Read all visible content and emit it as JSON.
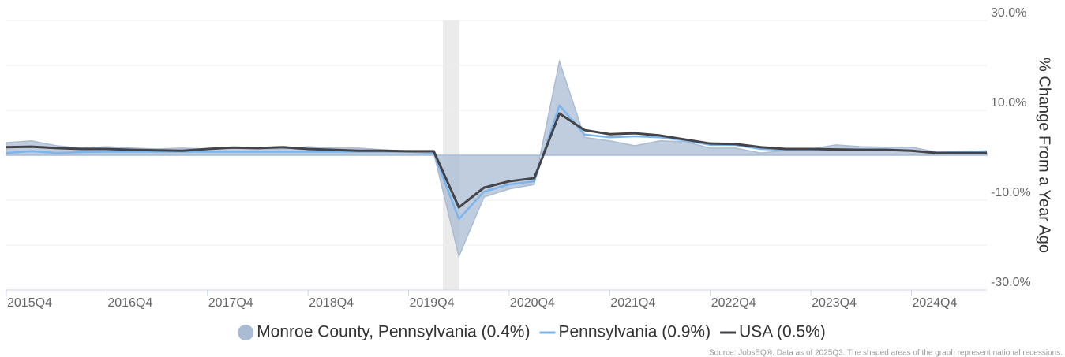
{
  "chart_data": {
    "type": "line",
    "y_axis_label": "% Change From a Year Ago",
    "source": "Source: JobsEQ®. Data as of 2025Q3. The shaded areas of the graph represent national recessions.",
    "categories": [
      "2015Q4",
      null,
      null,
      null,
      "2016Q4",
      null,
      null,
      null,
      "2017Q4",
      null,
      null,
      null,
      "2018Q4",
      null,
      null,
      null,
      "2019Q4",
      null,
      null,
      null,
      "2020Q4",
      null,
      null,
      null,
      "2021Q4",
      null,
      null,
      null,
      "2022Q4",
      null,
      null,
      null,
      "2023Q4",
      null,
      null,
      null,
      "2024Q4",
      null,
      null,
      null
    ],
    "series": [
      {
        "name": "Monroe County, Pennsylvania (0.4%)",
        "type": "area",
        "color": "#a9bcd4",
        "values": [
          2.8,
          3.2,
          2.1,
          1.6,
          1.9,
          1.6,
          1.4,
          1.6,
          1.4,
          1.6,
          1.4,
          1.4,
          1.9,
          1.6,
          1.6,
          1.2,
          0.9,
          0.5,
          -22.5,
          -9.3,
          -7.5,
          -6.5,
          20.9,
          4.0,
          3.2,
          2.1,
          3.2,
          3.0,
          1.6,
          1.6,
          0.5,
          1.0,
          1.4,
          2.3,
          1.9,
          1.8,
          1.8,
          0.7,
          0.7,
          0.4
        ]
      },
      {
        "name": "Pennsylvania (0.9%)",
        "type": "line",
        "color": "#7cb5ec",
        "values": [
          0.5,
          0.9,
          0.5,
          0.7,
          0.8,
          0.8,
          0.8,
          0.8,
          0.8,
          0.8,
          0.8,
          0.8,
          0.8,
          0.8,
          0.8,
          0.8,
          0.8,
          0.5,
          -14.2,
          -8.1,
          -6.5,
          -5.8,
          11.1,
          4.6,
          4.0,
          4.2,
          4.0,
          3.3,
          2.3,
          2.3,
          1.4,
          1.2,
          1.2,
          1.3,
          1.3,
          1.3,
          1.0,
          0.6,
          0.7,
          0.9
        ]
      },
      {
        "name": "USA (0.5%)",
        "type": "line",
        "color": "#434348",
        "values": [
          1.8,
          1.9,
          1.6,
          1.4,
          1.4,
          1.2,
          1.1,
          1.0,
          1.4,
          1.7,
          1.6,
          1.8,
          1.4,
          1.2,
          1.0,
          1.0,
          0.9,
          0.9,
          -11.6,
          -7.2,
          -5.8,
          -5.1,
          9.3,
          5.6,
          4.7,
          4.9,
          4.4,
          3.5,
          2.6,
          2.5,
          1.8,
          1.4,
          1.4,
          1.3,
          1.2,
          1.2,
          1.0,
          0.5,
          0.5,
          0.5
        ]
      }
    ],
    "ylim": [
      -30,
      30
    ],
    "yticks": [
      {
        "value": 30,
        "label": "30.0%"
      },
      {
        "value": 20,
        "label": null
      },
      {
        "value": 10,
        "label": "10.0%"
      },
      {
        "value": 0,
        "label": null
      },
      {
        "value": -10,
        "label": "-10.0%"
      },
      {
        "value": -20,
        "label": null
      },
      {
        "value": -30,
        "label": "-30.0%"
      }
    ],
    "grid": true
  }
}
